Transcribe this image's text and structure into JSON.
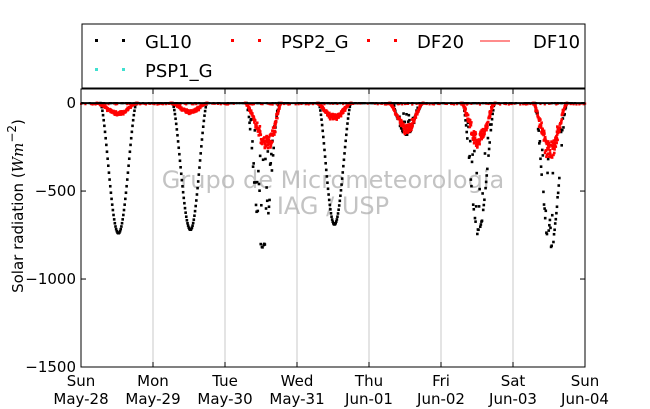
{
  "chart_data": {
    "type": "scatter",
    "ylabel": "Solar radiation (Wm⁻²)",
    "ylabel_tspans": [
      "Solar radiation (",
      "W",
      "m",
      "−2",
      ")"
    ],
    "ylim": [
      -1500,
      80
    ],
    "xlim_days": [
      0,
      7
    ],
    "yticks": [
      {
        "value": 0,
        "label": "0"
      },
      {
        "value": -500,
        "label": "−500"
      },
      {
        "value": -1000,
        "label": "−1000"
      },
      {
        "value": -1500,
        "label": "−1500"
      }
    ],
    "xticks": [
      {
        "day": 0,
        "weekday": "Sun",
        "date": "May-28"
      },
      {
        "day": 1,
        "weekday": "Mon",
        "date": "May-29"
      },
      {
        "day": 2,
        "weekday": "Tue",
        "date": "May-30"
      },
      {
        "day": 3,
        "weekday": "Wed",
        "date": "May-31"
      },
      {
        "day": 4,
        "weekday": "Thu",
        "date": "Jun-01"
      },
      {
        "day": 5,
        "weekday": "Fri",
        "date": "Jun-02"
      },
      {
        "day": 6,
        "weekday": "Sat",
        "date": "Jun-03"
      },
      {
        "day": 7,
        "weekday": "Sun",
        "date": "Jun-04"
      }
    ],
    "grid": "vertical",
    "legend": {
      "placement": "top",
      "entries": [
        {
          "name": "GL10",
          "color": "#000000",
          "style": "dots"
        },
        {
          "name": "PSP2_G",
          "color": "#ff0000",
          "style": "dots"
        },
        {
          "name": "DF20",
          "color": "#ff0000",
          "style": "dots"
        },
        {
          "name": "DF10",
          "color": "#ff6666",
          "style": "line"
        },
        {
          "name": "PSP1_G",
          "color": "#40e0d0",
          "style": "dots"
        }
      ]
    },
    "watermark": [
      "Grupo de Micrometeorologia",
      "IAG / USP"
    ],
    "series": [
      {
        "name": "GL10",
        "color": "#000000",
        "days": [
          {
            "day": 0,
            "sunrise": 0.27,
            "noon": 0.52,
            "sunset": 0.77,
            "peak": -740,
            "cloudy": false
          },
          {
            "day": 1,
            "sunrise": 0.27,
            "noon": 0.52,
            "sunset": 0.75,
            "peak": -720,
            "cloudy": false
          },
          {
            "day": 2,
            "sunrise": 0.3,
            "noon": 0.52,
            "sunset": 0.75,
            "peak": -820,
            "cloudy": true,
            "scatter_min": -300
          },
          {
            "day": 3,
            "sunrise": 0.3,
            "noon": 0.52,
            "sunset": 0.75,
            "peak": -690,
            "cloudy": false
          },
          {
            "day": 4,
            "sunrise": 0.3,
            "noon": 0.52,
            "sunset": 0.75,
            "peak": -180,
            "cloudy": true,
            "scatter_min": -40
          },
          {
            "day": 5,
            "sunrise": 0.3,
            "noon": 0.52,
            "sunset": 0.75,
            "peak": -720,
            "cloudy": true,
            "scatter_min": -200
          },
          {
            "day": 6,
            "sunrise": 0.3,
            "noon": 0.52,
            "sunset": 0.75,
            "peak": -820,
            "cloudy": true,
            "scatter_min": -250
          }
        ]
      },
      {
        "name": "DF20",
        "color": "#ff0000",
        "days": [
          {
            "day": 0,
            "sunrise": 0.22,
            "noon": 0.52,
            "sunset": 0.78,
            "peak": -65
          },
          {
            "day": 1,
            "sunrise": 0.25,
            "noon": 0.52,
            "sunset": 0.75,
            "peak": -55
          },
          {
            "day": 2,
            "sunrise": 0.28,
            "noon": 0.6,
            "sunset": 0.78,
            "peak": -250
          },
          {
            "day": 3,
            "sunrise": 0.28,
            "noon": 0.52,
            "sunset": 0.75,
            "peak": -90
          },
          {
            "day": 4,
            "sunrise": 0.28,
            "noon": 0.52,
            "sunset": 0.75,
            "peak": -160
          },
          {
            "day": 5,
            "sunrise": 0.28,
            "noon": 0.52,
            "sunset": 0.75,
            "peak": -230
          },
          {
            "day": 6,
            "sunrise": 0.28,
            "noon": 0.52,
            "sunset": 0.75,
            "peak": -290
          }
        ]
      }
    ]
  }
}
